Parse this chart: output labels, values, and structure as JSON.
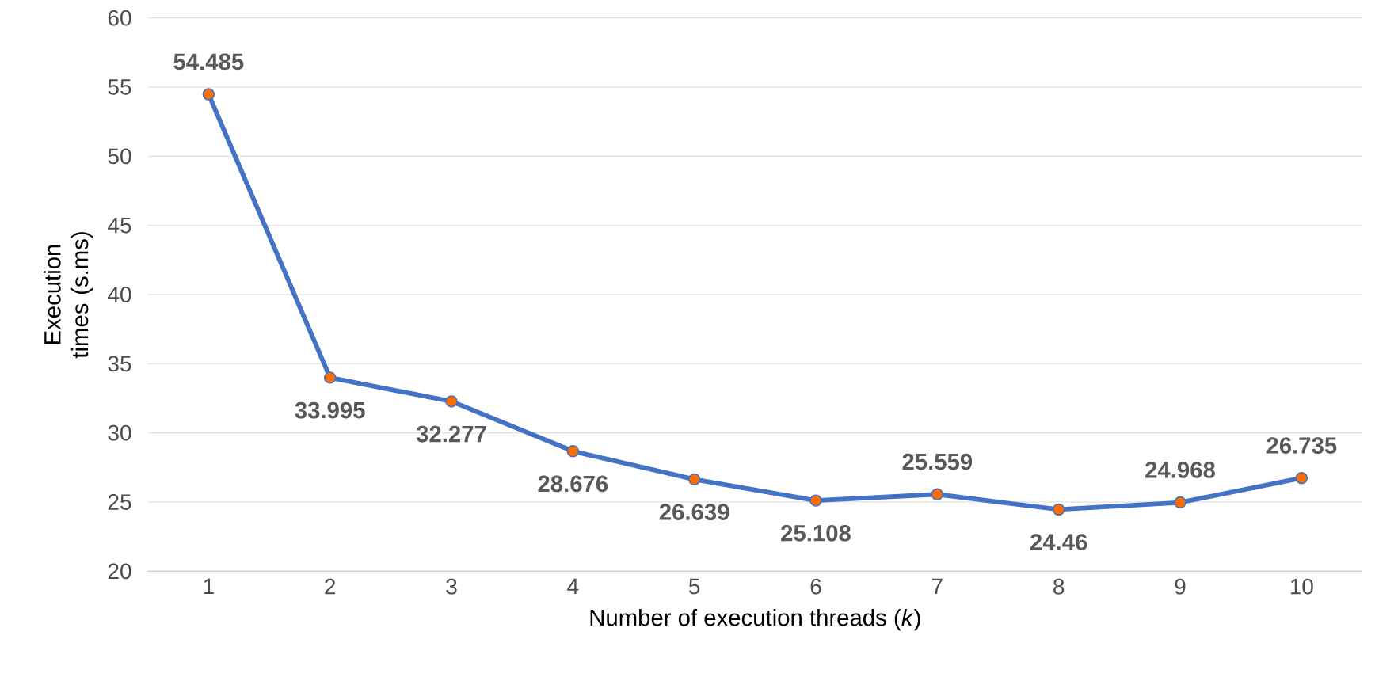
{
  "chart_data": {
    "type": "line",
    "xlabel": "Number of execution threads (*k*)",
    "ylabel": "Execution times (s.ms)",
    "categories": [
      "1",
      "2",
      "3",
      "4",
      "5",
      "6",
      "7",
      "8",
      "9",
      "10"
    ],
    "series": [
      {
        "color": "#4472c4",
        "values": [
          54.485,
          33.995,
          32.277,
          28.676,
          26.639,
          25.108,
          25.559,
          24.46,
          24.968,
          26.735
        ]
      }
    ],
    "ylim": [
      20,
      60
    ],
    "yticks": [
      20,
      25,
      30,
      35,
      40,
      45,
      50,
      55,
      60
    ],
    "grid": "y",
    "marker": "circle",
    "line_style": "solid",
    "data_labels": true
  }
}
